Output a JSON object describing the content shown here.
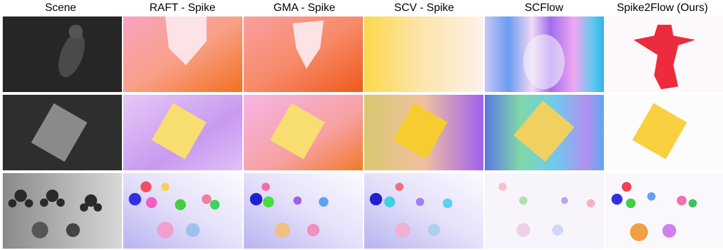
{
  "columns": [
    "Scene",
    "RAFT - Spike",
    "GMA - Spike",
    "SCV - Spike",
    "SCFlow",
    "Spike2Flow (Ours)"
  ]
}
